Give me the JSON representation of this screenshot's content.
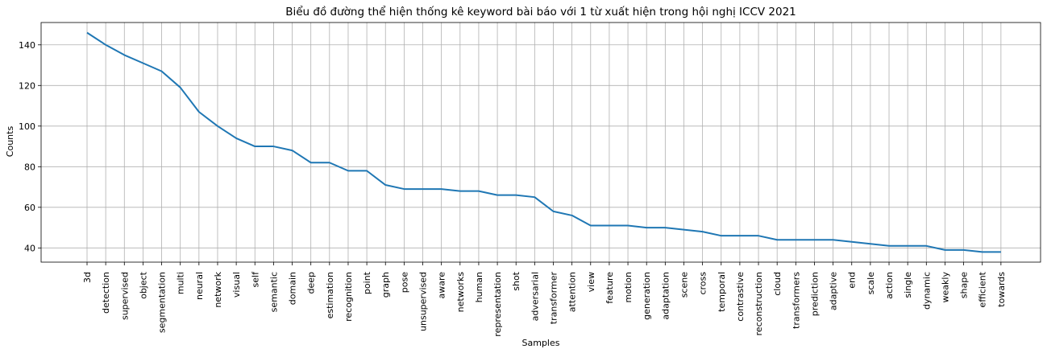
{
  "chart_data": {
    "type": "line",
    "title": "Biểu đồ đường thể hiện thống kê keyword bài báo với 1 từ xuất hiện trong hội nghị ICCV 2021",
    "xlabel": "Samples",
    "ylabel": "Counts",
    "ylim": [
      33,
      151
    ],
    "yticks": [
      40,
      60,
      80,
      100,
      120,
      140
    ],
    "grid": true,
    "line_color": "#1f77b4",
    "categories": [
      "3d",
      "detection",
      "supervised",
      "object",
      "segmentation",
      "multi",
      "neural",
      "network",
      "visual",
      "self",
      "semantic",
      "domain",
      "deep",
      "estimation",
      "recognition",
      "point",
      "graph",
      "pose",
      "unsupervised",
      "aware",
      "networks",
      "human",
      "representation",
      "shot",
      "adversarial",
      "transformer",
      "attention",
      "view",
      "feature",
      "motion",
      "generation",
      "adaptation",
      "scene",
      "cross",
      "temporal",
      "contrastive",
      "reconstruction",
      "cloud",
      "transformers",
      "prediction",
      "adaptive",
      "end",
      "scale",
      "action",
      "single",
      "dynamic",
      "weakly",
      "shape",
      "efficient",
      "towards"
    ],
    "values": [
      146,
      140,
      135,
      131,
      127,
      119,
      107,
      100,
      94,
      90,
      90,
      88,
      82,
      82,
      78,
      78,
      71,
      69,
      69,
      69,
      68,
      68,
      66,
      66,
      65,
      58,
      56,
      51,
      51,
      51,
      50,
      50,
      49,
      48,
      46,
      46,
      46,
      44,
      44,
      44,
      44,
      43,
      42,
      41,
      41,
      41,
      39,
      39,
      38,
      38
    ]
  }
}
